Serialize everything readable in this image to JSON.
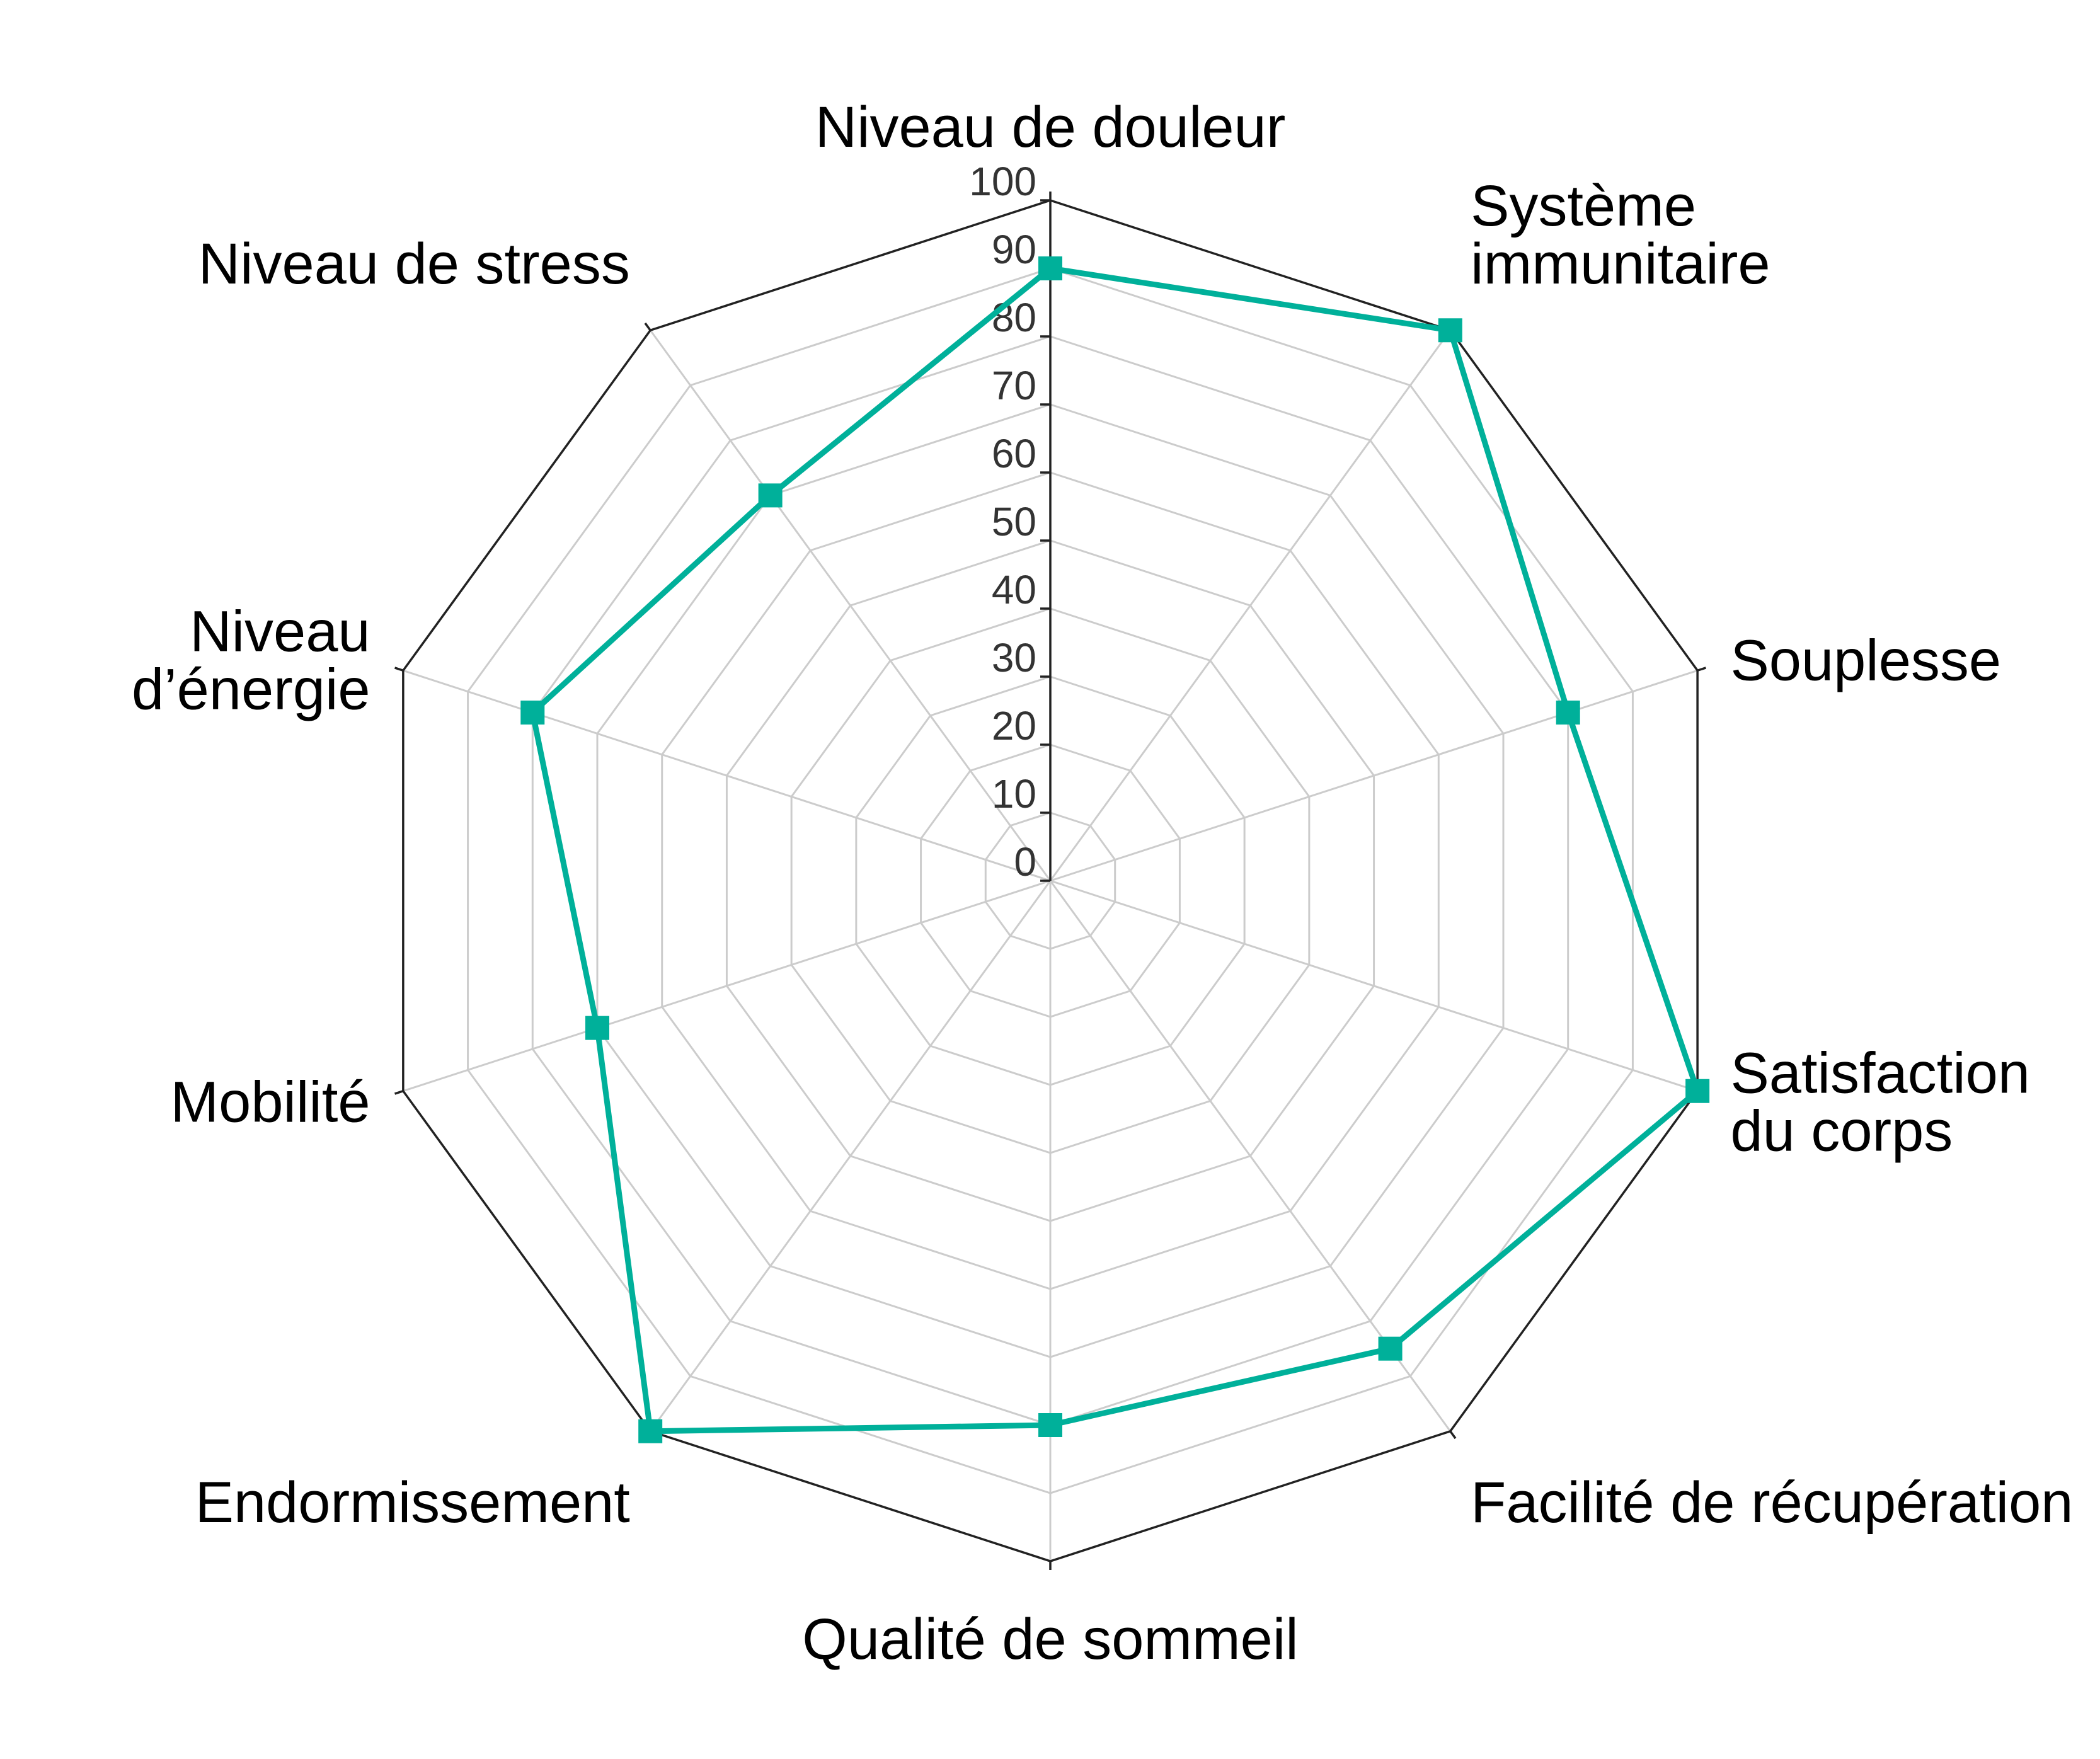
{
  "chart_data": {
    "type": "radar",
    "categories": [
      [
        "Niveau de douleur"
      ],
      [
        "Système",
        "immunitaire"
      ],
      [
        "Souplesse"
      ],
      [
        "Satisfaction",
        "du corps"
      ],
      [
        "Facilité de récupération"
      ],
      [
        "Qualité de sommeil"
      ],
      [
        "Endormissement"
      ],
      [
        "Mobilité"
      ],
      [
        "Niveau",
        "d’énergie"
      ],
      [
        "Niveau de stress"
      ]
    ],
    "series": [
      {
        "values": [
          90,
          100,
          80,
          100,
          85,
          80,
          100,
          70,
          80,
          70
        ]
      }
    ],
    "rlim": [
      0,
      100
    ],
    "ticks": [
      0,
      10,
      20,
      30,
      40,
      50,
      60,
      70,
      80,
      90,
      100
    ],
    "grid": true,
    "colors": {
      "series": "#00b09a",
      "grid": "#cccccc",
      "axis": "#222222",
      "tick_text": "#333333"
    }
  }
}
